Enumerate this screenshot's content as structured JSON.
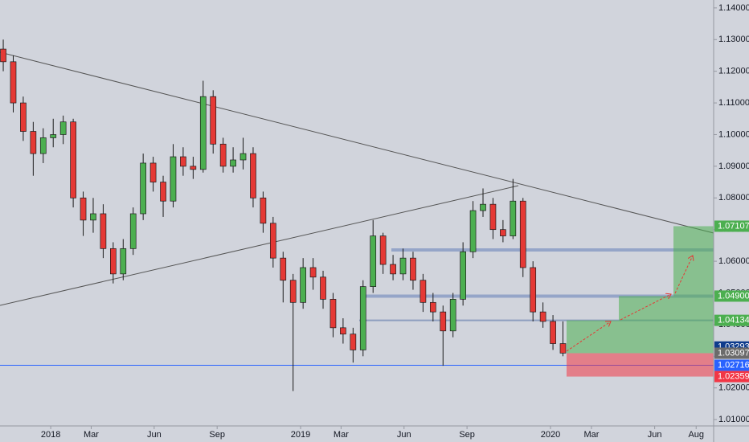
{
  "chart_data": {
    "type": "candlestick",
    "x": [
      2017.81,
      2017.85,
      2017.89,
      2017.93,
      2017.97,
      2018.01,
      2018.05,
      2018.09,
      2018.13,
      2018.17,
      2018.21,
      2018.25,
      2018.29,
      2018.33,
      2018.37,
      2018.41,
      2018.45,
      2018.49,
      2018.53,
      2018.57,
      2018.61,
      2018.65,
      2018.69,
      2018.73,
      2018.77,
      2018.81,
      2018.85,
      2018.89,
      2018.93,
      2018.97,
      2019.01,
      2019.05,
      2019.09,
      2019.13,
      2019.17,
      2019.21,
      2019.25,
      2019.29,
      2019.33,
      2019.37,
      2019.41,
      2019.45,
      2019.49,
      2019.53,
      2019.57,
      2019.61,
      2019.65,
      2019.69,
      2019.73,
      2019.77,
      2019.81,
      2019.85,
      2019.89,
      2019.93,
      2019.97,
      2020.01,
      2020.05
    ],
    "open": [
      1.127,
      1.123,
      1.11,
      1.101,
      1.094,
      1.099,
      1.1,
      1.104,
      1.08,
      1.073,
      1.075,
      1.064,
      1.056,
      1.064,
      1.075,
      1.091,
      1.085,
      1.079,
      1.093,
      1.09,
      1.089,
      1.112,
      1.097,
      1.09,
      1.092,
      1.094,
      1.08,
      1.072,
      1.061,
      1.054,
      1.047,
      1.058,
      1.055,
      1.048,
      1.039,
      1.037,
      1.032,
      1.052,
      1.068,
      1.059,
      1.056,
      1.061,
      1.054,
      1.047,
      1.044,
      1.038,
      1.048,
      1.063,
      1.076,
      1.078,
      1.07,
      1.068,
      1.079,
      1.058,
      1.044,
      1.041,
      1.034
    ],
    "high": [
      1.13,
      1.125,
      1.112,
      1.104,
      1.102,
      1.105,
      1.106,
      1.105,
      1.082,
      1.08,
      1.078,
      1.066,
      1.067,
      1.077,
      1.094,
      1.093,
      1.087,
      1.097,
      1.096,
      1.093,
      1.117,
      1.114,
      1.099,
      1.096,
      1.099,
      1.096,
      1.082,
      1.074,
      1.063,
      1.056,
      1.061,
      1.061,
      1.057,
      1.05,
      1.042,
      1.039,
      1.054,
      1.073,
      1.069,
      1.062,
      1.064,
      1.063,
      1.056,
      1.05,
      1.046,
      1.05,
      1.066,
      1.079,
      1.083,
      1.08,
      1.073,
      1.086,
      1.08,
      1.06,
      1.047,
      1.043,
      1.041
    ],
    "low": [
      1.12,
      1.107,
      1.098,
      1.087,
      1.091,
      1.096,
      1.097,
      1.077,
      1.068,
      1.069,
      1.061,
      1.053,
      1.054,
      1.062,
      1.073,
      1.082,
      1.074,
      1.077,
      1.087,
      1.086,
      1.088,
      1.094,
      1.088,
      1.088,
      1.089,
      1.077,
      1.069,
      1.058,
      1.047,
      1.019,
      1.045,
      1.051,
      1.045,
      1.036,
      1.034,
      1.028,
      1.03,
      1.05,
      1.056,
      1.054,
      1.054,
      1.051,
      1.044,
      1.041,
      1.027,
      1.036,
      1.046,
      1.061,
      1.074,
      1.067,
      1.066,
      1.067,
      1.055,
      1.041,
      1.039,
      1.032,
      1.03
    ],
    "close": [
      1.123,
      1.11,
      1.101,
      1.094,
      1.099,
      1.1,
      1.104,
      1.08,
      1.073,
      1.075,
      1.064,
      1.056,
      1.064,
      1.075,
      1.091,
      1.085,
      1.079,
      1.093,
      1.09,
      1.089,
      1.112,
      1.097,
      1.09,
      1.092,
      1.094,
      1.08,
      1.072,
      1.061,
      1.054,
      1.047,
      1.058,
      1.055,
      1.048,
      1.039,
      1.037,
      1.032,
      1.052,
      1.068,
      1.059,
      1.056,
      1.061,
      1.054,
      1.047,
      1.044,
      1.038,
      1.048,
      1.063,
      1.076,
      1.078,
      1.07,
      1.068,
      1.079,
      1.058,
      1.044,
      1.041,
      1.034,
      1.031
    ],
    "up_color": "#4caf50",
    "down_color": "#e53935",
    "xlim": [
      2017.797,
      2020.653
    ],
    "xticks": [
      {
        "value": 2018.0,
        "label": "2018"
      },
      {
        "value": 2018.162,
        "label": "Mar"
      },
      {
        "value": 2018.414,
        "label": "Jun"
      },
      {
        "value": 2018.666,
        "label": "Sep"
      },
      {
        "value": 2019.0,
        "label": "2019"
      },
      {
        "value": 2019.162,
        "label": "Mar"
      },
      {
        "value": 2019.414,
        "label": "Jun"
      },
      {
        "value": 2019.666,
        "label": "Sep"
      },
      {
        "value": 2020.0,
        "label": "2020"
      },
      {
        "value": 2020.164,
        "label": "Mar"
      },
      {
        "value": 2020.417,
        "label": "Jun"
      },
      {
        "value": 2020.583,
        "label": "Aug"
      }
    ],
    "ylim": [
      1.008,
      1.1425
    ],
    "yticks": [
      {
        "value": 1.14,
        "label": "1.14000"
      },
      {
        "value": 1.13,
        "label": "1.13000"
      },
      {
        "value": 1.12,
        "label": "1.12000"
      },
      {
        "value": 1.11,
        "label": "1.11000"
      },
      {
        "value": 1.1,
        "label": "1.10000"
      },
      {
        "value": 1.09,
        "label": "1.09000"
      },
      {
        "value": 1.08,
        "label": "1.08000"
      },
      {
        "value": 1.07,
        "label": "1.07000"
      },
      {
        "value": 1.06,
        "label": "1.06000"
      },
      {
        "value": 1.05,
        "label": "1.05000"
      },
      {
        "value": 1.04,
        "label": "1.04000"
      },
      {
        "value": 1.03,
        "label": "1.03000"
      },
      {
        "value": 1.02,
        "label": "1.02000"
      },
      {
        "value": 1.01,
        "label": "1.01000"
      }
    ],
    "levels": [
      {
        "value": 1.07107,
        "color": "#4caf50"
      },
      {
        "value": 1.049,
        "label": "1.04900",
        "color": "#4caf50"
      },
      {
        "value": 1.04134,
        "color": "#4caf50"
      },
      {
        "value": 1.03293,
        "color": "#0d3b8c"
      },
      {
        "value": 1.03097,
        "color": "#6b6b6b"
      },
      {
        "value": 1.02716,
        "color": "#2962ff"
      },
      {
        "value": 1.02359,
        "color": "#f23645"
      }
    ]
  }
}
